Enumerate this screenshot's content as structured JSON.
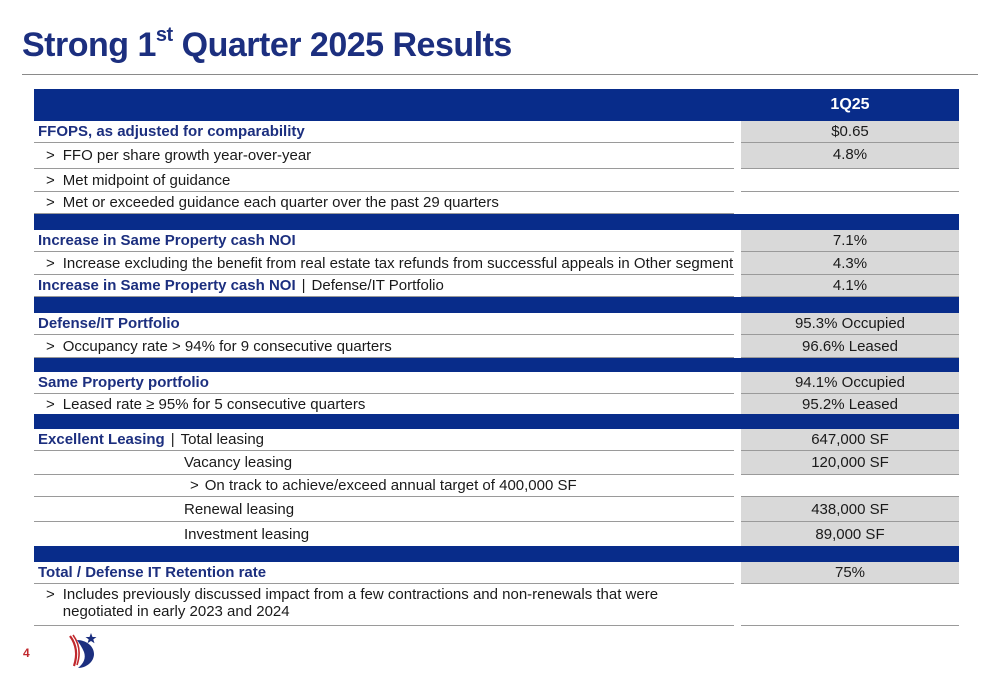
{
  "title": {
    "prefix": "Strong 1",
    "sup": "st",
    "suffix": " Quarter 2025 Results"
  },
  "table": {
    "column_header": "1Q25",
    "rows": {
      "ffops": {
        "label": "FFOPS, as adjusted for comparability",
        "value": "$0.65"
      },
      "ffo_growth": {
        "arrow": ">",
        "label": "FFO per share growth year-over-year",
        "value": "4.8%"
      },
      "met_midpoint": {
        "arrow": ">",
        "label": "Met midpoint of guidance"
      },
      "met_exceeded": {
        "arrow": ">",
        "label": "Met or exceeded guidance each quarter over the past 29 quarters"
      },
      "same_prop_noi": {
        "label": "Increase in Same Property cash NOI",
        "value": "7.1%"
      },
      "excl_tax": {
        "arrow": ">",
        "label": "Increase excluding the benefit from real estate tax refunds from successful appeals in Other segment",
        "value": "4.3%"
      },
      "same_prop_noi_def": {
        "label": "Increase in Same Property cash NOI",
        "pipe": "|",
        "label2": "Defense/IT Portfolio",
        "value": "4.1%"
      },
      "def_portfolio": {
        "label": "Defense/IT Portfolio",
        "value": "95.3% Occupied"
      },
      "occupancy": {
        "arrow": ">",
        "label": "Occupancy rate > 94% for 9 consecutive quarters",
        "value": "96.6% Leased"
      },
      "same_portfolio": {
        "label": "Same Property portfolio",
        "value": "94.1% Occupied"
      },
      "leased_rate": {
        "arrow": ">",
        "label": "Leased rate ≥ 95% for 5 consecutive quarters",
        "value": "95.2% Leased"
      },
      "excellent_leasing": {
        "label": "Excellent Leasing",
        "pipe": "|",
        "label2": "Total leasing",
        "value": "647,000 SF"
      },
      "vacancy": {
        "label": "Vacancy leasing",
        "value": "120,000 SF"
      },
      "on_track": {
        "arrow": ">",
        "label": "On track to achieve/exceed annual target of 400,000 SF"
      },
      "renewal": {
        "label": "Renewal leasing",
        "value": "438,000 SF"
      },
      "investment": {
        "label": "Investment leasing",
        "value": "89,000 SF"
      },
      "retention": {
        "label": "Total / Defense IT Retention rate",
        "value": "75%"
      },
      "includes": {
        "arrow": ">",
        "label": "Includes previously discussed impact from a few contractions and non-renewals that were negotiated in early 2023 and 2024"
      }
    }
  },
  "footer": {
    "page_number": "4"
  },
  "colors": {
    "navy": "#082c8a",
    "title_blue": "#1c2f7f",
    "value_gray": "#d9d9d9",
    "page_red": "#c0282d"
  }
}
